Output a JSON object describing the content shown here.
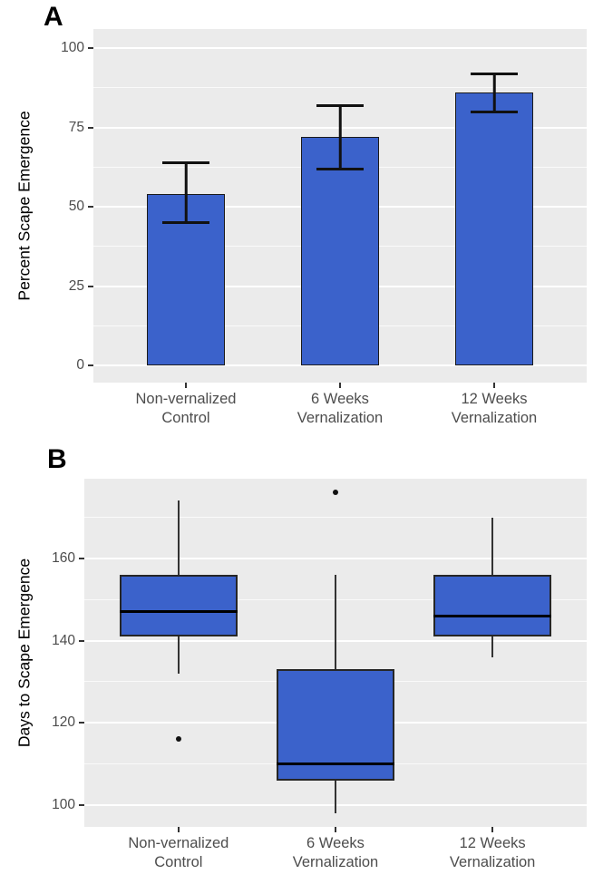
{
  "figure": {
    "background": "#ffffff",
    "panel_background": "#EBEBEB",
    "grid_color": "#ffffff",
    "bar_fill": "#3B62CB",
    "stroke_color": "#1A1A1A",
    "tick_label_color": "#4D4D4D",
    "axis_title_color": "#000000"
  },
  "chart_data": [
    {
      "panel_label": "A",
      "type": "bar",
      "categories": [
        "Non-vernalized Control",
        "6 Weeks Vernalization",
        "12 Weeks Vernalization"
      ],
      "categories_display": [
        [
          "Non-vernalized",
          "Control"
        ],
        [
          "6 Weeks",
          "Vernalization"
        ],
        [
          "12 Weeks",
          "Vernalization"
        ]
      ],
      "values": [
        54,
        72,
        86
      ],
      "error_low": [
        45,
        62,
        80
      ],
      "error_high": [
        64,
        82,
        92
      ],
      "title": "",
      "xlabel": "",
      "ylabel": "Percent Scape Emergence",
      "yticks": [
        0,
        25,
        50,
        75,
        100
      ],
      "minor_gridlines": [
        12.5,
        37.5,
        62.5,
        87.5
      ],
      "ylim": [
        -5.4,
        106
      ],
      "grid": "on",
      "legend": "none",
      "bar_color": "#3B62CB"
    },
    {
      "panel_label": "B",
      "type": "boxplot",
      "categories": [
        "Non-vernalized Control",
        "6 Weeks Vernalization",
        "12 Weeks Vernalization"
      ],
      "categories_display": [
        [
          "Non-vernalized",
          "Control"
        ],
        [
          "6 Weeks",
          "Vernalization"
        ],
        [
          "12 Weeks",
          "Vernalization"
        ]
      ],
      "boxes": [
        {
          "whisker_low": 132,
          "q1": 141,
          "median": 147,
          "q3": 156,
          "whisker_high": 174,
          "outliers": [
            116
          ]
        },
        {
          "whisker_low": 98,
          "q1": 106,
          "median": 110,
          "q3": 133,
          "whisker_high": 156,
          "outliers": [
            176
          ]
        },
        {
          "whisker_low": 136,
          "q1": 141,
          "median": 146,
          "q3": 156,
          "whisker_high": 170,
          "outliers": []
        }
      ],
      "title": "",
      "xlabel": "",
      "ylabel": "Days to Scape Emergence",
      "yticks": [
        100,
        120,
        140,
        160
      ],
      "minor_gridlines": [
        110,
        130,
        150,
        170
      ],
      "ylim": [
        94.7,
        179.4
      ],
      "grid": "on",
      "legend": "none",
      "box_fill": "#3B62CB"
    }
  ]
}
